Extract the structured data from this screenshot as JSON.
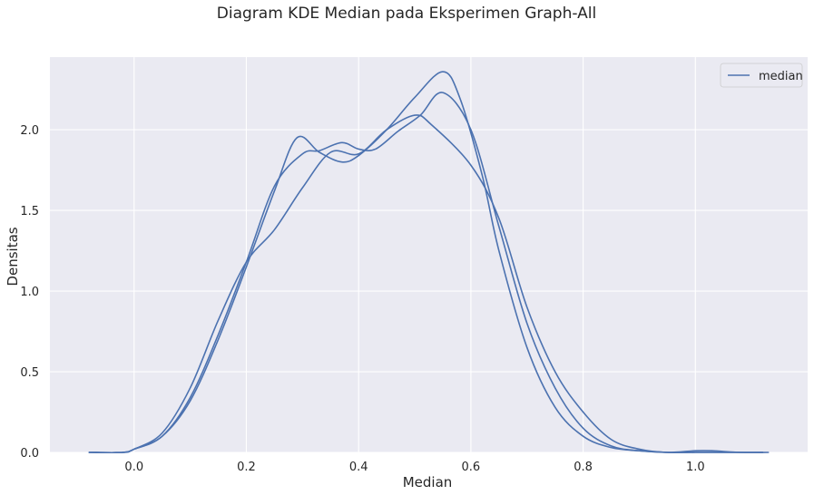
{
  "chart_data": {
    "type": "line",
    "title": "Diagram KDE Median pada Eksperimen Graph-All",
    "xlabel": "Median",
    "ylabel": "Densitas",
    "xlim": [
      -0.15,
      1.2
    ],
    "ylim": [
      0,
      2.45
    ],
    "xticks": [
      0.0,
      0.2,
      0.4,
      0.6,
      0.8,
      1.0
    ],
    "xtick_labels": [
      "0.0",
      "0.2",
      "0.4",
      "0.6",
      "0.8",
      "1.0"
    ],
    "yticks": [
      0.0,
      0.5,
      1.0,
      1.5,
      2.0
    ],
    "ytick_labels": [
      "0.0",
      "0.5",
      "1.0",
      "1.5",
      "2.0"
    ],
    "grid": true,
    "legend": {
      "position": "top-right",
      "entries": [
        "median"
      ]
    },
    "colors": {
      "line": "#4c72b0",
      "plot_bg": "#eaeaf2",
      "grid": "#ffffff"
    },
    "series": [
      {
        "name": "median",
        "x": [
          -0.08,
          -0.02,
          0.0,
          0.05,
          0.1,
          0.15,
          0.2,
          0.25,
          0.29,
          0.33,
          0.37,
          0.4,
          0.45,
          0.5,
          0.55,
          0.58,
          0.62,
          0.65,
          0.7,
          0.75,
          0.8,
          0.85,
          0.9,
          0.95,
          1.0,
          1.05,
          1.12
        ],
        "values": [
          0.0,
          0.0,
          0.02,
          0.1,
          0.32,
          0.7,
          1.15,
          1.62,
          1.95,
          1.86,
          1.8,
          1.84,
          2.0,
          2.2,
          2.36,
          2.2,
          1.72,
          1.25,
          0.65,
          0.28,
          0.1,
          0.03,
          0.01,
          0.0,
          0.0,
          0.0,
          0.0
        ]
      },
      {
        "name": "median",
        "x": [
          -0.08,
          -0.02,
          0.0,
          0.05,
          0.1,
          0.15,
          0.2,
          0.25,
          0.3,
          0.33,
          0.37,
          0.4,
          0.43,
          0.47,
          0.51,
          0.55,
          0.6,
          0.65,
          0.7,
          0.75,
          0.8,
          0.85,
          0.9,
          0.95,
          1.0,
          1.05,
          1.12
        ],
        "values": [
          0.0,
          0.0,
          0.02,
          0.1,
          0.34,
          0.73,
          1.18,
          1.65,
          1.85,
          1.87,
          1.92,
          1.88,
          1.88,
          1.99,
          2.09,
          2.23,
          2.0,
          1.4,
          0.8,
          0.4,
          0.15,
          0.04,
          0.01,
          0.0,
          0.0,
          0.0,
          0.0
        ]
      },
      {
        "name": "median",
        "x": [
          -0.08,
          -0.02,
          0.0,
          0.05,
          0.1,
          0.15,
          0.2,
          0.25,
          0.3,
          0.35,
          0.4,
          0.45,
          0.5,
          0.53,
          0.6,
          0.65,
          0.7,
          0.75,
          0.8,
          0.85,
          0.9,
          0.95,
          1.0,
          1.03,
          1.08,
          1.13
        ],
        "values": [
          0.0,
          0.0,
          0.02,
          0.12,
          0.4,
          0.82,
          1.18,
          1.38,
          1.64,
          1.86,
          1.85,
          2.0,
          2.09,
          2.03,
          1.78,
          1.45,
          0.9,
          0.5,
          0.25,
          0.08,
          0.02,
          0.0,
          0.01,
          0.01,
          0.0,
          0.0
        ]
      }
    ]
  }
}
